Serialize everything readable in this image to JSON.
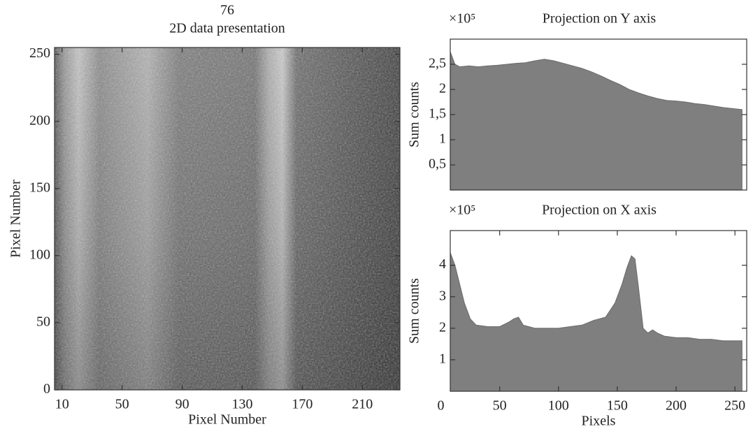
{
  "chart_data": [
    {
      "type": "image",
      "title": "76",
      "subtitle": "2D data presentation",
      "xlabel": "Pixel Number",
      "ylabel": "Pixel Number",
      "xlim": [
        5,
        235
      ],
      "ylim": [
        0,
        255
      ],
      "xticks": [
        10,
        50,
        90,
        130,
        170,
        210
      ],
      "yticks": [
        0,
        50,
        100,
        150,
        200,
        250
      ]
    },
    {
      "type": "area",
      "title": "Projection on Y axis",
      "multiplier": "×10⁵",
      "ylabel": "Sum counts",
      "color": "#7f7f7f",
      "x": [
        8,
        12,
        16,
        24,
        32,
        40,
        48,
        56,
        64,
        72,
        80,
        88,
        96,
        104,
        112,
        120,
        128,
        136,
        144,
        152,
        160,
        168,
        176,
        184,
        192,
        200,
        208,
        216,
        224,
        232,
        240,
        248,
        256
      ],
      "values": [
        2.75,
        2.5,
        2.45,
        2.47,
        2.45,
        2.47,
        2.48,
        2.5,
        2.52,
        2.53,
        2.57,
        2.6,
        2.57,
        2.52,
        2.47,
        2.42,
        2.35,
        2.27,
        2.18,
        2.1,
        2.0,
        1.93,
        1.87,
        1.82,
        1.78,
        1.77,
        1.75,
        1.72,
        1.7,
        1.67,
        1.64,
        1.62,
        1.6
      ],
      "xlim": [
        8,
        260
      ],
      "ylim": [
        0,
        3.0
      ],
      "yticks": [
        {
          "value": 0.5,
          "label": "0,5"
        },
        1,
        {
          "value": 1.5,
          "label": "1,5"
        },
        2,
        {
          "value": 2.5,
          "label": "2,5"
        }
      ]
    },
    {
      "type": "area",
      "title": "Projection on X axis",
      "multiplier": "×10⁵",
      "ylabel": "Sum counts",
      "xlabel": "Pixels",
      "color": "#7f7f7f",
      "x": [
        8,
        12,
        16,
        20,
        25,
        30,
        40,
        50,
        58,
        62,
        66,
        70,
        80,
        90,
        100,
        110,
        120,
        130,
        140,
        148,
        154,
        158,
        162,
        165,
        168,
        172,
        176,
        180,
        184,
        190,
        200,
        210,
        220,
        230,
        240,
        250,
        256
      ],
      "values": [
        4.4,
        4.0,
        3.4,
        2.8,
        2.3,
        2.1,
        2.05,
        2.05,
        2.2,
        2.3,
        2.35,
        2.1,
        2.0,
        2.0,
        2.0,
        2.05,
        2.1,
        2.25,
        2.35,
        2.8,
        3.4,
        3.9,
        4.3,
        4.2,
        3.3,
        2.0,
        1.85,
        1.95,
        1.85,
        1.75,
        1.7,
        1.7,
        1.65,
        1.65,
        1.6,
        1.6,
        1.6
      ],
      "xlim": [
        8,
        260
      ],
      "ylim": [
        0,
        5.1
      ],
      "xticks": [
        0,
        50,
        100,
        150,
        200,
        250
      ],
      "yticks": [
        1,
        2,
        3,
        4
      ]
    }
  ]
}
